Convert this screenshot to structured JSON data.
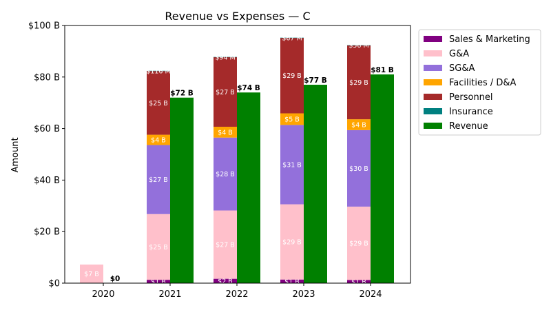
{
  "chart_data": {
    "type": "bar",
    "title": "Revenue vs Expenses — C",
    "xlabel": "",
    "ylabel": "Amount",
    "ylim": [
      0,
      100
    ],
    "yticks": [
      0,
      20,
      40,
      60,
      80,
      100
    ],
    "ytick_labels": [
      "$0",
      "$20 B",
      "$40 B",
      "$60 B",
      "$80 B",
      "$100 B"
    ],
    "categories": [
      "2020",
      "2021",
      "2022",
      "2023",
      "2024"
    ],
    "legend_position": "outside-top-right",
    "grid": false,
    "expense_series": [
      {
        "name": "Sales & Marketing",
        "color": "#800080",
        "values": [
          0,
          1.3,
          1.7,
          1.4,
          1.2
        ],
        "labels": [
          "",
          "$1 B",
          "$2 B",
          "$1 B",
          "$1 B"
        ]
      },
      {
        "name": "G&A",
        "color": "#FFC0CB",
        "values": [
          7.2,
          25.5,
          26.5,
          29.2,
          28.5
        ],
        "labels": [
          "$7 B",
          "$25 B",
          "$27 B",
          "$29 B",
          "$29 B"
        ]
      },
      {
        "name": "SG&A",
        "color": "#9370DB",
        "values": [
          0,
          26.8,
          28.3,
          30.8,
          29.7
        ],
        "labels": [
          "",
          "$27 B",
          "$28 B",
          "$31 B",
          "$30 B"
        ]
      },
      {
        "name": "Facilities / D&A",
        "color": "#FFA500",
        "values": [
          0,
          4.0,
          4.2,
          4.5,
          4.2
        ],
        "labels": [
          "",
          "$4 B",
          "$4 B",
          "$5 B",
          "$4 B"
        ]
      },
      {
        "name": "Personnel",
        "color": "#A52A2A",
        "values": [
          0,
          24.7,
          27.0,
          29.3,
          28.7
        ],
        "labels": [
          "",
          "$25 B",
          "$27 B",
          "$29 B",
          "$29 B"
        ]
      },
      {
        "name": "Insurance",
        "color": "#008080",
        "values": [
          0,
          0.116,
          0.094,
          0.067,
          0.056
        ],
        "labels": [
          "",
          "$116 M",
          "$94 M",
          "$67 M",
          "$56 M"
        ]
      }
    ],
    "revenue_series": {
      "name": "Revenue",
      "color": "#008000",
      "values": [
        0,
        72,
        74,
        77,
        81
      ],
      "labels": [
        "$0",
        "$72 B",
        "$74 B",
        "$77 B",
        "$81 B"
      ]
    }
  }
}
